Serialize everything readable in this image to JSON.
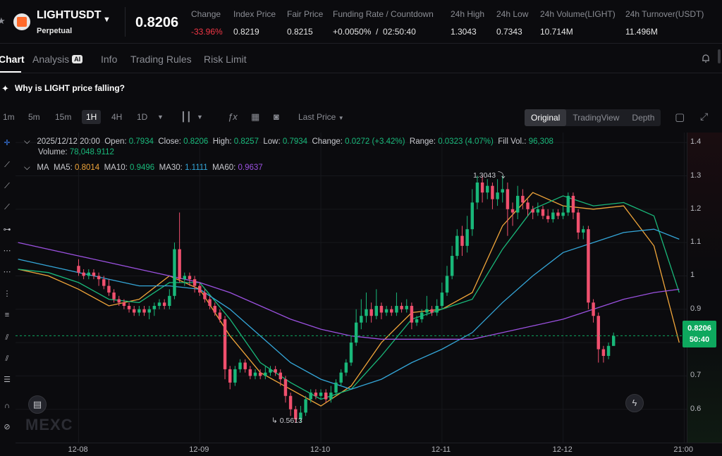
{
  "header": {
    "symbol": "LIGHTUSDT",
    "contract_type": "Perpetual",
    "last_price": "0.8206",
    "stats": [
      {
        "label": "Change",
        "value": "-33.96%",
        "negative": true
      },
      {
        "label": "Index Price",
        "value": "0.8219"
      },
      {
        "label": "Fair Price",
        "value": "0.8215"
      },
      {
        "label": "Funding Rate / Countdown",
        "value": "+0.0050%  /  02:50:40"
      },
      {
        "label": "24h High",
        "value": "1.3043"
      },
      {
        "label": "24h Low",
        "value": "0.7343"
      },
      {
        "label": "24h Volume(LIGHT)",
        "value": "10.714M"
      },
      {
        "label": "24h Turnover(USDT)",
        "value": "11.496M"
      }
    ]
  },
  "tabs": [
    {
      "label": "Chart",
      "active": true
    },
    {
      "label": "Analysis",
      "badge": "AI"
    },
    {
      "label": "Info"
    },
    {
      "label": "Trading Rules"
    },
    {
      "label": "Risk Limit"
    }
  ],
  "news_prompt": "Why is LIGHT price falling?",
  "toolbar": {
    "timeframes": [
      "1m",
      "5m",
      "15m",
      "1H",
      "4H",
      "1D"
    ],
    "active_timeframe": "1H",
    "price_type": "Last Price",
    "views": [
      "Original",
      "TradingView",
      "Depth"
    ],
    "active_view": "Original"
  },
  "legend": {
    "datetime": "2025/12/12 20:00",
    "open_label": "Open:",
    "open": "0.7934",
    "close_label": "Close:",
    "close": "0.8206",
    "high_label": "High:",
    "high": "0.8257",
    "low_label": "Low:",
    "low": "0.7934",
    "change_label": "Change:",
    "change": "0.0272 (+3.42%)",
    "range_label": "Range:",
    "range": "0.0323 (4.07%)",
    "fillvol_label": "Fill Vol.:",
    "fillvol": "96,308",
    "volume_label": "Volume:",
    "volume": "78,048.9112",
    "ma_label": "MA",
    "ma": [
      {
        "name": "MA5:",
        "value": "0.8014",
        "color": "#f0a53a"
      },
      {
        "name": "MA10:",
        "value": "0.9496",
        "color": "#19b87a"
      },
      {
        "name": "MA30:",
        "value": "1.1111",
        "color": "#34a6d8"
      },
      {
        "name": "MA60:",
        "value": "0.9637",
        "color": "#9b51e0"
      }
    ]
  },
  "price_tag": {
    "price": "0.8206",
    "countdown": "50:40"
  },
  "watermark": "MEXC",
  "annotations": {
    "high": "1.3043",
    "low": "0.5613"
  },
  "chart_data": {
    "type": "candlestick",
    "y_ticks": [
      1.4,
      1.3,
      1.2,
      1.1,
      1,
      0.9,
      0.8,
      0.7,
      0.6
    ],
    "y_tick_labels": [
      "1.4",
      "1.3",
      "1.2",
      "1.1",
      "1",
      "0.9",
      "0.8",
      "0.7",
      "0.6"
    ],
    "ylim": [
      0.5,
      1.43
    ],
    "x_ticks": [
      "12-08",
      "12-09",
      "12-10",
      "12-11",
      "12-12",
      "21:00"
    ],
    "x_tick_pos": [
      0,
      24,
      48,
      72,
      96,
      120
    ],
    "x_range": [
      -12.5,
      120.5
    ],
    "current_price": 0.8206,
    "candles": [
      [
        1.03,
        1.01,
        1.05,
        1.0
      ],
      [
        1.01,
        1.0,
        1.02,
        0.99
      ],
      [
        1.0,
        1.01,
        1.02,
        0.99
      ],
      [
        1.01,
        1.0,
        1.02,
        0.99
      ],
      [
        1.0,
        0.99,
        1.01,
        0.97
      ],
      [
        0.99,
        0.97,
        1.0,
        0.96
      ],
      [
        0.97,
        0.95,
        0.99,
        0.94
      ],
      [
        0.95,
        0.93,
        0.96,
        0.92
      ],
      [
        0.93,
        0.92,
        0.94,
        0.91
      ],
      [
        0.92,
        0.91,
        0.93,
        0.9
      ],
      [
        0.91,
        0.9,
        0.92,
        0.89
      ],
      [
        0.9,
        0.89,
        0.91,
        0.88
      ],
      [
        0.89,
        0.9,
        0.91,
        0.88
      ],
      [
        0.9,
        0.89,
        0.91,
        0.88
      ],
      [
        0.89,
        0.9,
        0.91,
        0.87
      ],
      [
        0.9,
        0.91,
        0.92,
        0.88
      ],
      [
        0.91,
        0.92,
        0.93,
        0.9
      ],
      [
        0.92,
        0.91,
        0.93,
        0.9
      ],
      [
        0.91,
        0.94,
        0.96,
        0.9
      ],
      [
        0.94,
        1.08,
        1.1,
        0.93
      ],
      [
        1.08,
        0.99,
        1.19,
        0.98
      ],
      [
        0.99,
        1.0,
        1.01,
        0.97
      ],
      [
        1.0,
        0.99,
        1.01,
        0.97
      ],
      [
        0.99,
        0.97,
        1.0,
        0.95
      ],
      [
        0.97,
        0.95,
        0.98,
        0.94
      ],
      [
        0.95,
        0.93,
        0.96,
        0.92
      ],
      [
        0.93,
        0.91,
        0.94,
        0.9
      ],
      [
        0.91,
        0.89,
        0.92,
        0.88
      ],
      [
        0.89,
        0.87,
        0.9,
        0.86
      ],
      [
        0.87,
        0.72,
        0.88,
        0.69
      ],
      [
        0.72,
        0.68,
        0.73,
        0.66
      ],
      [
        0.68,
        0.72,
        0.73,
        0.67
      ],
      [
        0.72,
        0.74,
        0.75,
        0.71
      ],
      [
        0.74,
        0.72,
        0.75,
        0.71
      ],
      [
        0.72,
        0.7,
        0.73,
        0.69
      ],
      [
        0.7,
        0.71,
        0.72,
        0.69
      ],
      [
        0.71,
        0.7,
        0.72,
        0.69
      ],
      [
        0.7,
        0.71,
        0.73,
        0.69
      ],
      [
        0.71,
        0.72,
        0.73,
        0.7
      ],
      [
        0.72,
        0.71,
        0.73,
        0.7
      ],
      [
        0.71,
        0.69,
        0.72,
        0.67
      ],
      [
        0.69,
        0.64,
        0.7,
        0.62
      ],
      [
        0.64,
        0.6,
        0.65,
        0.58
      ],
      [
        0.6,
        0.57,
        0.61,
        0.56
      ],
      [
        0.57,
        0.59,
        0.61,
        0.56
      ],
      [
        0.59,
        0.63,
        0.64,
        0.58
      ],
      [
        0.63,
        0.65,
        0.66,
        0.62
      ],
      [
        0.65,
        0.64,
        0.66,
        0.63
      ],
      [
        0.64,
        0.65,
        0.66,
        0.63
      ],
      [
        0.65,
        0.63,
        0.66,
        0.62
      ],
      [
        0.63,
        0.65,
        0.67,
        0.62
      ],
      [
        0.65,
        0.68,
        0.69,
        0.64
      ],
      [
        0.68,
        0.71,
        0.72,
        0.67
      ],
      [
        0.71,
        0.74,
        0.75,
        0.7
      ],
      [
        0.74,
        0.8,
        0.82,
        0.73
      ],
      [
        0.8,
        0.86,
        0.9,
        0.79
      ],
      [
        0.86,
        0.88,
        0.93,
        0.84
      ],
      [
        0.88,
        0.9,
        0.95,
        0.86
      ],
      [
        0.9,
        0.88,
        0.92,
        0.86
      ],
      [
        0.88,
        0.91,
        0.96,
        0.87
      ],
      [
        0.91,
        0.89,
        0.92,
        0.87
      ],
      [
        0.89,
        0.9,
        0.91,
        0.88
      ],
      [
        0.9,
        0.89,
        0.91,
        0.88
      ],
      [
        0.89,
        0.91,
        0.95,
        0.88
      ],
      [
        0.91,
        0.9,
        0.92,
        0.89
      ],
      [
        0.9,
        0.91,
        0.93,
        0.89
      ],
      [
        0.91,
        0.86,
        0.92,
        0.84
      ],
      [
        0.86,
        0.87,
        0.88,
        0.85
      ],
      [
        0.87,
        0.89,
        0.9,
        0.86
      ],
      [
        0.89,
        0.9,
        0.94,
        0.88
      ],
      [
        0.9,
        0.89,
        0.91,
        0.88
      ],
      [
        0.89,
        0.91,
        0.93,
        0.88
      ],
      [
        0.91,
        0.95,
        0.98,
        0.9
      ],
      [
        0.95,
        1.0,
        1.03,
        0.94
      ],
      [
        1.0,
        1.06,
        1.09,
        0.99
      ],
      [
        1.06,
        1.12,
        1.14,
        1.05
      ],
      [
        1.12,
        1.09,
        1.15,
        1.06
      ],
      [
        1.09,
        1.14,
        1.18,
        1.07
      ],
      [
        1.14,
        1.22,
        1.26,
        1.12
      ],
      [
        1.22,
        1.28,
        1.3,
        1.2
      ],
      [
        1.28,
        1.25,
        1.3,
        1.22
      ],
      [
        1.25,
        1.27,
        1.29,
        1.23
      ],
      [
        1.27,
        1.23,
        1.28,
        1.2
      ],
      [
        1.23,
        1.25,
        1.29,
        1.21
      ],
      [
        1.25,
        1.26,
        1.3,
        1.22
      ],
      [
        1.26,
        1.2,
        1.28,
        1.12
      ],
      [
        1.2,
        1.19,
        1.22,
        1.15
      ],
      [
        1.19,
        1.24,
        1.27,
        1.17
      ],
      [
        1.24,
        1.22,
        1.26,
        1.2
      ],
      [
        1.22,
        1.2,
        1.23,
        1.18
      ],
      [
        1.2,
        1.19,
        1.21,
        1.17
      ],
      [
        1.19,
        1.2,
        1.22,
        1.18
      ],
      [
        1.2,
        1.18,
        1.21,
        1.17
      ],
      [
        1.18,
        1.17,
        1.2,
        1.16
      ],
      [
        1.17,
        1.19,
        1.2,
        1.16
      ],
      [
        1.19,
        1.18,
        1.2,
        1.17
      ],
      [
        1.18,
        1.19,
        1.21,
        1.17
      ],
      [
        1.19,
        1.24,
        1.25,
        1.18
      ],
      [
        1.24,
        1.19,
        1.25,
        1.17
      ],
      [
        1.19,
        1.13,
        1.2,
        1.11
      ],
      [
        1.13,
        1.14,
        1.15,
        1.11
      ],
      [
        1.14,
        0.92,
        1.15,
        0.9
      ],
      [
        0.92,
        0.88,
        0.93,
        0.86
      ],
      [
        0.88,
        0.78,
        0.89,
        0.74
      ],
      [
        0.78,
        0.76,
        0.79,
        0.74
      ],
      [
        0.76,
        0.79,
        0.8,
        0.75
      ],
      [
        0.79,
        0.82,
        0.83,
        0.79
      ]
    ],
    "ma_series": [
      {
        "name": "MA5",
        "color": "#f0a53a",
        "x": [
          -12,
          -6,
          0,
          6,
          12,
          18,
          24,
          30,
          36,
          42,
          48,
          54,
          60,
          66,
          72,
          78,
          84,
          90,
          96,
          102,
          108,
          114,
          119
        ],
        "values": [
          1.02,
          1.0,
          0.96,
          0.91,
          0.93,
          1.0,
          0.96,
          0.82,
          0.71,
          0.66,
          0.61,
          0.67,
          0.8,
          0.89,
          0.9,
          0.95,
          1.15,
          1.25,
          1.21,
          1.2,
          1.21,
          1.09,
          0.8
        ]
      },
      {
        "name": "MA10",
        "color": "#19b87a",
        "x": [
          -12,
          -6,
          0,
          6,
          12,
          18,
          24,
          30,
          36,
          42,
          48,
          54,
          60,
          66,
          72,
          78,
          84,
          90,
          96,
          102,
          108,
          114,
          119
        ],
        "values": [
          1.02,
          1.01,
          0.98,
          0.93,
          0.92,
          0.98,
          0.98,
          0.87,
          0.74,
          0.68,
          0.63,
          0.66,
          0.76,
          0.87,
          0.9,
          0.93,
          1.08,
          1.2,
          1.24,
          1.21,
          1.22,
          1.18,
          0.95
        ]
      },
      {
        "name": "MA30",
        "color": "#34a6d8",
        "x": [
          -12,
          -6,
          0,
          6,
          12,
          18,
          24,
          30,
          36,
          42,
          48,
          54,
          60,
          66,
          72,
          78,
          84,
          90,
          96,
          102,
          108,
          114,
          119
        ],
        "values": [
          1.05,
          1.03,
          1.01,
          0.99,
          0.97,
          0.97,
          0.96,
          0.9,
          0.82,
          0.74,
          0.69,
          0.66,
          0.69,
          0.74,
          0.78,
          0.83,
          0.92,
          1.0,
          1.07,
          1.1,
          1.13,
          1.14,
          1.11
        ]
      },
      {
        "name": "MA60",
        "color": "#9b51e0",
        "x": [
          -12,
          -6,
          0,
          6,
          12,
          18,
          24,
          30,
          36,
          42,
          48,
          54,
          60,
          66,
          72,
          78,
          84,
          90,
          96,
          102,
          108,
          114,
          119
        ],
        "values": [
          1.1,
          1.08,
          1.06,
          1.04,
          1.02,
          1.0,
          0.98,
          0.95,
          0.91,
          0.87,
          0.84,
          0.82,
          0.81,
          0.81,
          0.81,
          0.81,
          0.83,
          0.85,
          0.87,
          0.9,
          0.93,
          0.95,
          0.96
        ]
      }
    ]
  }
}
